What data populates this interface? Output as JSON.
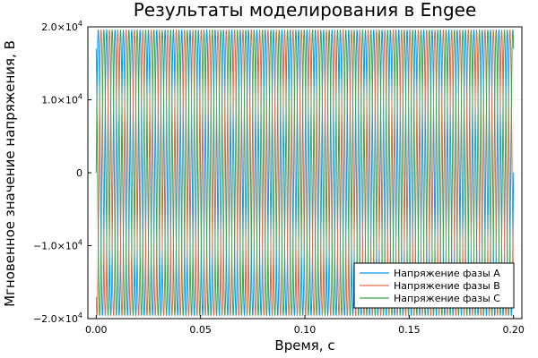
{
  "chart_data": {
    "type": "line",
    "title": "Результаты моделирования в Engee",
    "xlabel": "Время, с",
    "ylabel": "Мгновенное значение напряжения, В",
    "xlim": [
      -0.004,
      0.204
    ],
    "ylim": [
      -20000,
      20000
    ],
    "x_ticks": [
      {
        "value": 0.0,
        "label": "0.00"
      },
      {
        "value": 0.05,
        "label": "0.05"
      },
      {
        "value": 0.1,
        "label": "0.10"
      },
      {
        "value": 0.15,
        "label": "0.15"
      },
      {
        "value": 0.2,
        "label": "0.20"
      }
    ],
    "y_ticks": [
      {
        "value": 20000,
        "mant": "2.0×10",
        "exp": "4"
      },
      {
        "value": 10000,
        "mant": "1.0×10",
        "exp": "4"
      },
      {
        "value": 0,
        "mant": "0",
        "exp": ""
      },
      {
        "value": -10000,
        "mant": "−1.0×10",
        "exp": "4"
      },
      {
        "value": -20000,
        "mant": "−2.0×10",
        "exp": "4"
      }
    ],
    "grid": true,
    "legend_position": "bottom-right",
    "waveform": {
      "amplitude": 19600,
      "frequency_hz": 250,
      "t_start": 0.0,
      "t_end": 0.2
    },
    "series": [
      {
        "name": "Напряжение фазы A",
        "color": "#009AFA",
        "phase_deg": 0
      },
      {
        "name": "Напряжение фазы B",
        "color": "#E36F47",
        "phase_deg": -120
      },
      {
        "name": "Напряжение фазы C",
        "color": "#3EA44E",
        "phase_deg": 120
      }
    ]
  }
}
